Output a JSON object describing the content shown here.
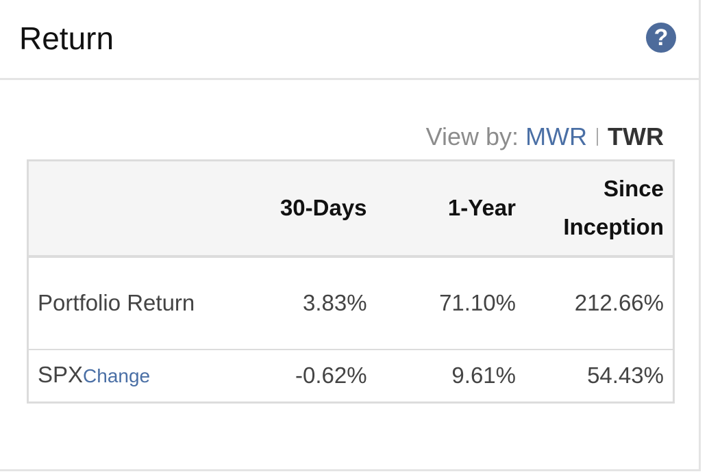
{
  "header": {
    "title": "Return",
    "help": "?"
  },
  "view_by": {
    "label": "View by:",
    "options": [
      "MWR",
      "TWR"
    ]
  },
  "table": {
    "columns": [
      "30-Days",
      "1-Year",
      "Since Inception"
    ],
    "rows": [
      {
        "label": "Portfolio Return",
        "values": [
          "3.83%",
          "71.10%",
          "212.66%"
        ]
      },
      {
        "label": "SPX",
        "link": "Change",
        "values": [
          "-0.62%",
          "9.61%",
          "54.43%"
        ]
      }
    ]
  }
}
